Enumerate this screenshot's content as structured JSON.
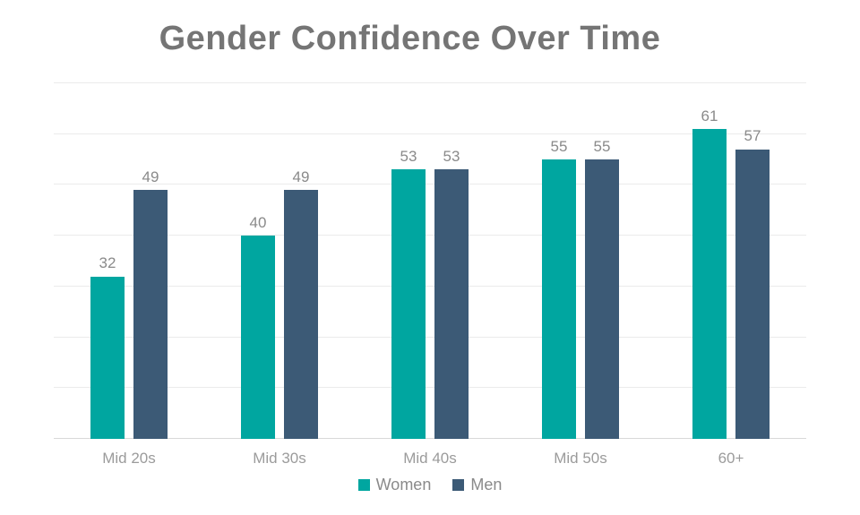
{
  "title": "Gender Confidence Over Time",
  "chart_data": {
    "type": "bar",
    "title": "Gender Confidence Over Time",
    "categories": [
      "Mid 20s",
      "Mid 30s",
      "Mid 40s",
      "Mid 50s",
      "60+"
    ],
    "series": [
      {
        "name": "Women",
        "color": "#00A6A0",
        "values": [
          32,
          40,
          53,
          55,
          61
        ]
      },
      {
        "name": "Men",
        "color": "#3C5A76",
        "values": [
          49,
          49,
          53,
          55,
          57
        ]
      }
    ],
    "xlabel": "",
    "ylabel": "",
    "ylim": [
      0,
      70
    ],
    "gridline_interval": 10,
    "grid": true,
    "y_tick_labels_shown": false,
    "data_labels": true,
    "legend_position": "bottom"
  },
  "colors": {
    "title_text": "#757575",
    "value_label_text": "#8A8A8A",
    "axis_label_text": "#9B9B9B",
    "legend_text": "#8A8A8A",
    "gridline": "#EBEBEB",
    "baseline": "#D9D9D9",
    "background": "#FFFFFF"
  }
}
